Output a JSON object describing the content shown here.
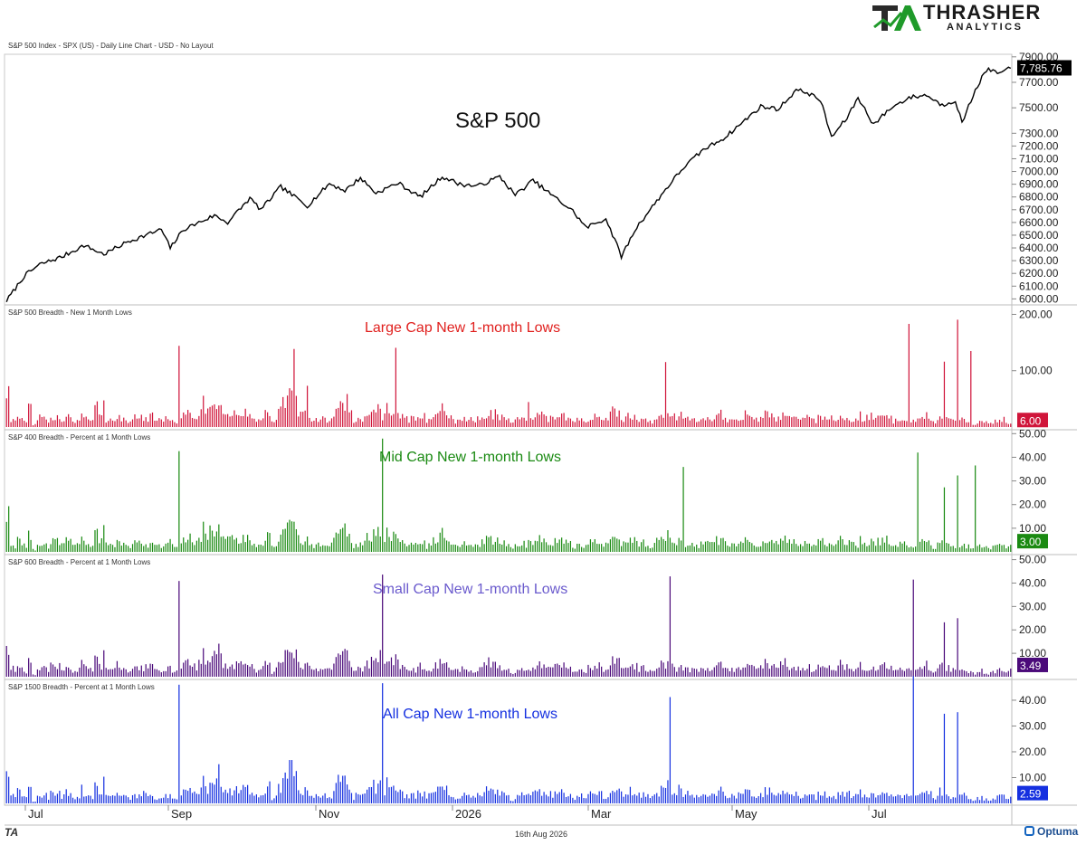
{
  "brand": {
    "name": "THRASHER",
    "sub": "ANALYTICS",
    "mark": "TA"
  },
  "header": "S&P 500 Index - SPX (US) - Daily Line Chart - USD - No Layout",
  "footer": {
    "date": "16th Aug 2026",
    "left_mark": "TA",
    "vendor": "Optuma"
  },
  "colors": {
    "price": "#000000",
    "large": "#d0153a",
    "mid": "#1a8a12",
    "small": "#4b0a7a",
    "all": "#1530e0",
    "large_title": "#e0201e",
    "mid_title": "#1a8a12",
    "small_title": "#6a5acd",
    "all_title": "#1530e0"
  },
  "chart_data": [
    {
      "type": "line",
      "title": "S&P 500",
      "x_tick_labels": [
        "Jul",
        "Sep",
        "Nov",
        "2026",
        "Mar",
        "May",
        "Jul"
      ],
      "y_tick_labels": [
        "6000.00",
        "6100.00",
        "6200.00",
        "6300.00",
        "6400.00",
        "6500.00",
        "6600.00",
        "6700.00",
        "6800.00",
        "6900.00",
        "7000.00",
        "7100.00",
        "7200.00",
        "7300.00",
        "7500.00",
        "7700.00",
        "7900.00"
      ],
      "ylim": [
        5960,
        7920
      ],
      "last_value_label": "7,785.76",
      "anchors": [
        [
          0,
          5985
        ],
        [
          8,
          6180
        ],
        [
          15,
          6270
        ],
        [
          25,
          6330
        ],
        [
          35,
          6420
        ],
        [
          44,
          6350
        ],
        [
          55,
          6450
        ],
        [
          70,
          6545
        ],
        [
          74,
          6400
        ],
        [
          80,
          6545
        ],
        [
          94,
          6655
        ],
        [
          100,
          6600
        ],
        [
          110,
          6790
        ],
        [
          115,
          6700
        ],
        [
          124,
          6880
        ],
        [
          136,
          6730
        ],
        [
          146,
          6905
        ],
        [
          153,
          6850
        ],
        [
          160,
          6950
        ],
        [
          167,
          6830
        ],
        [
          177,
          6910
        ],
        [
          187,
          6800
        ],
        [
          197,
          6960
        ],
        [
          205,
          6900
        ],
        [
          213,
          6885
        ],
        [
          223,
          6960
        ],
        [
          230,
          6815
        ],
        [
          238,
          6930
        ],
        [
          248,
          6795
        ],
        [
          256,
          6690
        ],
        [
          262,
          6560
        ],
        [
          271,
          6630
        ],
        [
          278,
          6335
        ],
        [
          285,
          6565
        ],
        [
          298,
          6860
        ],
        [
          306,
          7030
        ],
        [
          315,
          7170
        ],
        [
          325,
          7270
        ],
        [
          333,
          7390
        ],
        [
          341,
          7510
        ],
        [
          349,
          7490
        ],
        [
          357,
          7640
        ],
        [
          362,
          7620
        ],
        [
          368,
          7560
        ],
        [
          373,
          7270
        ],
        [
          380,
          7420
        ],
        [
          385,
          7580
        ],
        [
          392,
          7370
        ],
        [
          400,
          7500
        ],
        [
          408,
          7580
        ],
        [
          416,
          7600
        ],
        [
          423,
          7520
        ],
        [
          429,
          7560
        ],
        [
          432,
          7380
        ],
        [
          438,
          7640
        ],
        [
          443,
          7800
        ],
        [
          449,
          7770
        ],
        [
          454,
          7810
        ]
      ],
      "notes": "Daily closes reconstructed from the plotted line; x is trading-day index"
    },
    {
      "type": "bar",
      "title": "Large Cap New 1-month Lows",
      "panel_label": "S&P 500 Breadth - New 1 Month Lows",
      "y_tick_labels": [
        "100.00",
        "200.00"
      ],
      "ylim": [
        0,
        212
      ],
      "last_value_label": "6.00",
      "values": [
        62,
        14,
        10,
        20,
        12,
        8,
        30,
        4,
        10,
        16,
        14,
        6,
        18,
        18,
        18,
        12,
        20,
        20,
        10,
        12,
        28,
        16,
        12,
        10,
        42,
        18,
        36,
        12,
        14,
        12,
        20,
        14,
        12,
        8,
        18,
        14,
        16,
        16,
        12,
        20,
        10,
        12,
        10,
        14,
        18,
        10,
        8,
        22,
        22,
        24,
        16,
        18,
        24,
        40,
        24,
        40,
        40,
        52,
        34,
        20,
        22,
        22,
        22,
        20,
        24,
        26,
        18,
        14,
        12,
        16,
        24,
        28,
        8,
        12,
        28,
        40,
        42,
        56,
        44,
        26,
        20,
        24,
        18,
        10,
        12,
        10,
        14,
        12,
        14,
        30,
        38,
        44,
        42,
        24,
        10,
        14,
        12,
        18,
        24,
        30,
        26,
        34,
        18,
        44,
        26,
        32,
        22,
        18,
        14,
        12,
        16,
        12,
        22,
        18,
        8,
        14,
        20,
        22,
        32,
        28,
        20,
        18,
        10,
        14,
        14,
        12,
        16,
        10,
        14,
        20,
        22,
        26,
        20,
        24,
        16,
        18,
        14,
        6,
        10,
        14,
        16,
        12,
        16,
        20,
        18,
        22,
        18,
        14,
        16,
        18,
        20,
        22,
        16,
        18,
        8,
        12,
        14,
        10,
        16,
        14,
        18,
        20,
        10,
        12,
        20,
        30,
        24,
        16,
        14,
        22,
        18,
        20,
        14,
        16,
        12,
        10,
        14,
        18,
        26,
        22,
        30,
        20,
        14,
        24,
        12,
        16,
        12,
        12,
        10,
        16,
        14,
        14,
        14,
        20,
        22,
        18,
        12,
        16,
        14,
        14,
        16,
        22,
        18,
        18,
        12,
        16,
        24,
        22,
        18,
        14,
        20,
        26,
        22,
        18,
        16,
        16,
        14,
        16,
        18,
        12,
        10,
        18,
        20,
        14,
        16,
        10,
        16,
        22,
        16,
        18,
        14,
        12,
        20,
        12,
        16,
        20,
        14,
        18,
        24,
        22,
        16,
        10,
        12,
        14,
        16,
        12,
        10,
        10,
        14,
        18,
        22,
        16,
        8,
        12,
        20,
        14,
        18,
        12,
        10,
        12,
        14,
        10,
        8,
        6,
        10,
        12,
        8,
        6,
        8,
        10,
        12,
        14,
        8,
        6
      ],
      "notes": "Only a representative subset rendered; values in index units"
    },
    {
      "type": "bar",
      "title": "Mid Cap New 1-month Lows",
      "panel_label": "S&P 400 Breadth - Percent at 1 Month Lows",
      "y_tick_labels": [
        "10.00",
        "20.00",
        "30.00",
        "40.00",
        "50.00"
      ],
      "ylim": [
        0,
        50.5
      ],
      "last_value_label": "3.00"
    },
    {
      "type": "bar",
      "title": "Small Cap New 1-month Lows",
      "panel_label": "S&P 600 Breadth - Percent at 1 Month Lows",
      "y_tick_labels": [
        "10.00",
        "20.00",
        "30.00",
        "40.00",
        "50.00"
      ],
      "ylim": [
        0,
        51
      ],
      "last_value_label": "3.49"
    },
    {
      "type": "bar",
      "title": "All Cap New 1-month Lows",
      "panel_label": "S&P 1500 Breadth - Percent at 1 Month Lows",
      "y_tick_labels": [
        "10.00",
        "20.00",
        "30.00",
        "40.00"
      ],
      "ylim": [
        0,
        47
      ],
      "last_value_label": "2.59"
    }
  ]
}
